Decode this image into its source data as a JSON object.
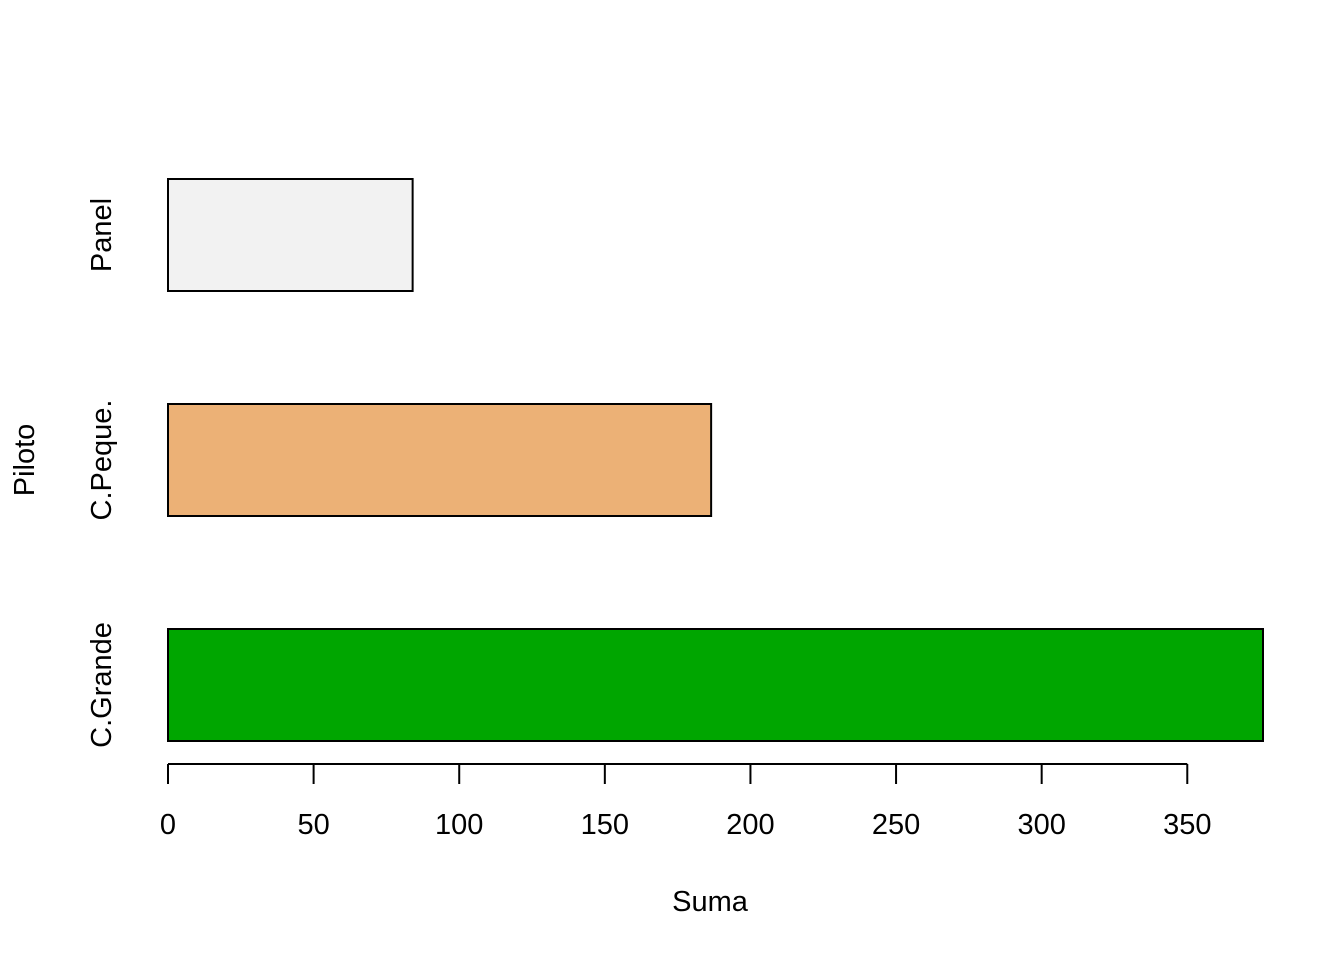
{
  "chart_data": {
    "type": "bar",
    "orientation": "horizontal",
    "title": "",
    "xlabel": "Suma",
    "ylabel": "Piloto",
    "categories": [
      "C.Grande",
      "C.Peque.",
      "Panel"
    ],
    "values": [
      376,
      186.5,
      84
    ],
    "colors": [
      "#00a600",
      "#ecb176",
      "#f2f2f2"
    ],
    "xlim": [
      0,
      376
    ],
    "xticks": [
      0,
      50,
      100,
      150,
      200,
      250,
      300,
      350
    ],
    "xtick_labels": [
      "0",
      "50",
      "100",
      "150",
      "200",
      "250",
      "300",
      "350"
    ],
    "grid": false,
    "legend": "none"
  }
}
